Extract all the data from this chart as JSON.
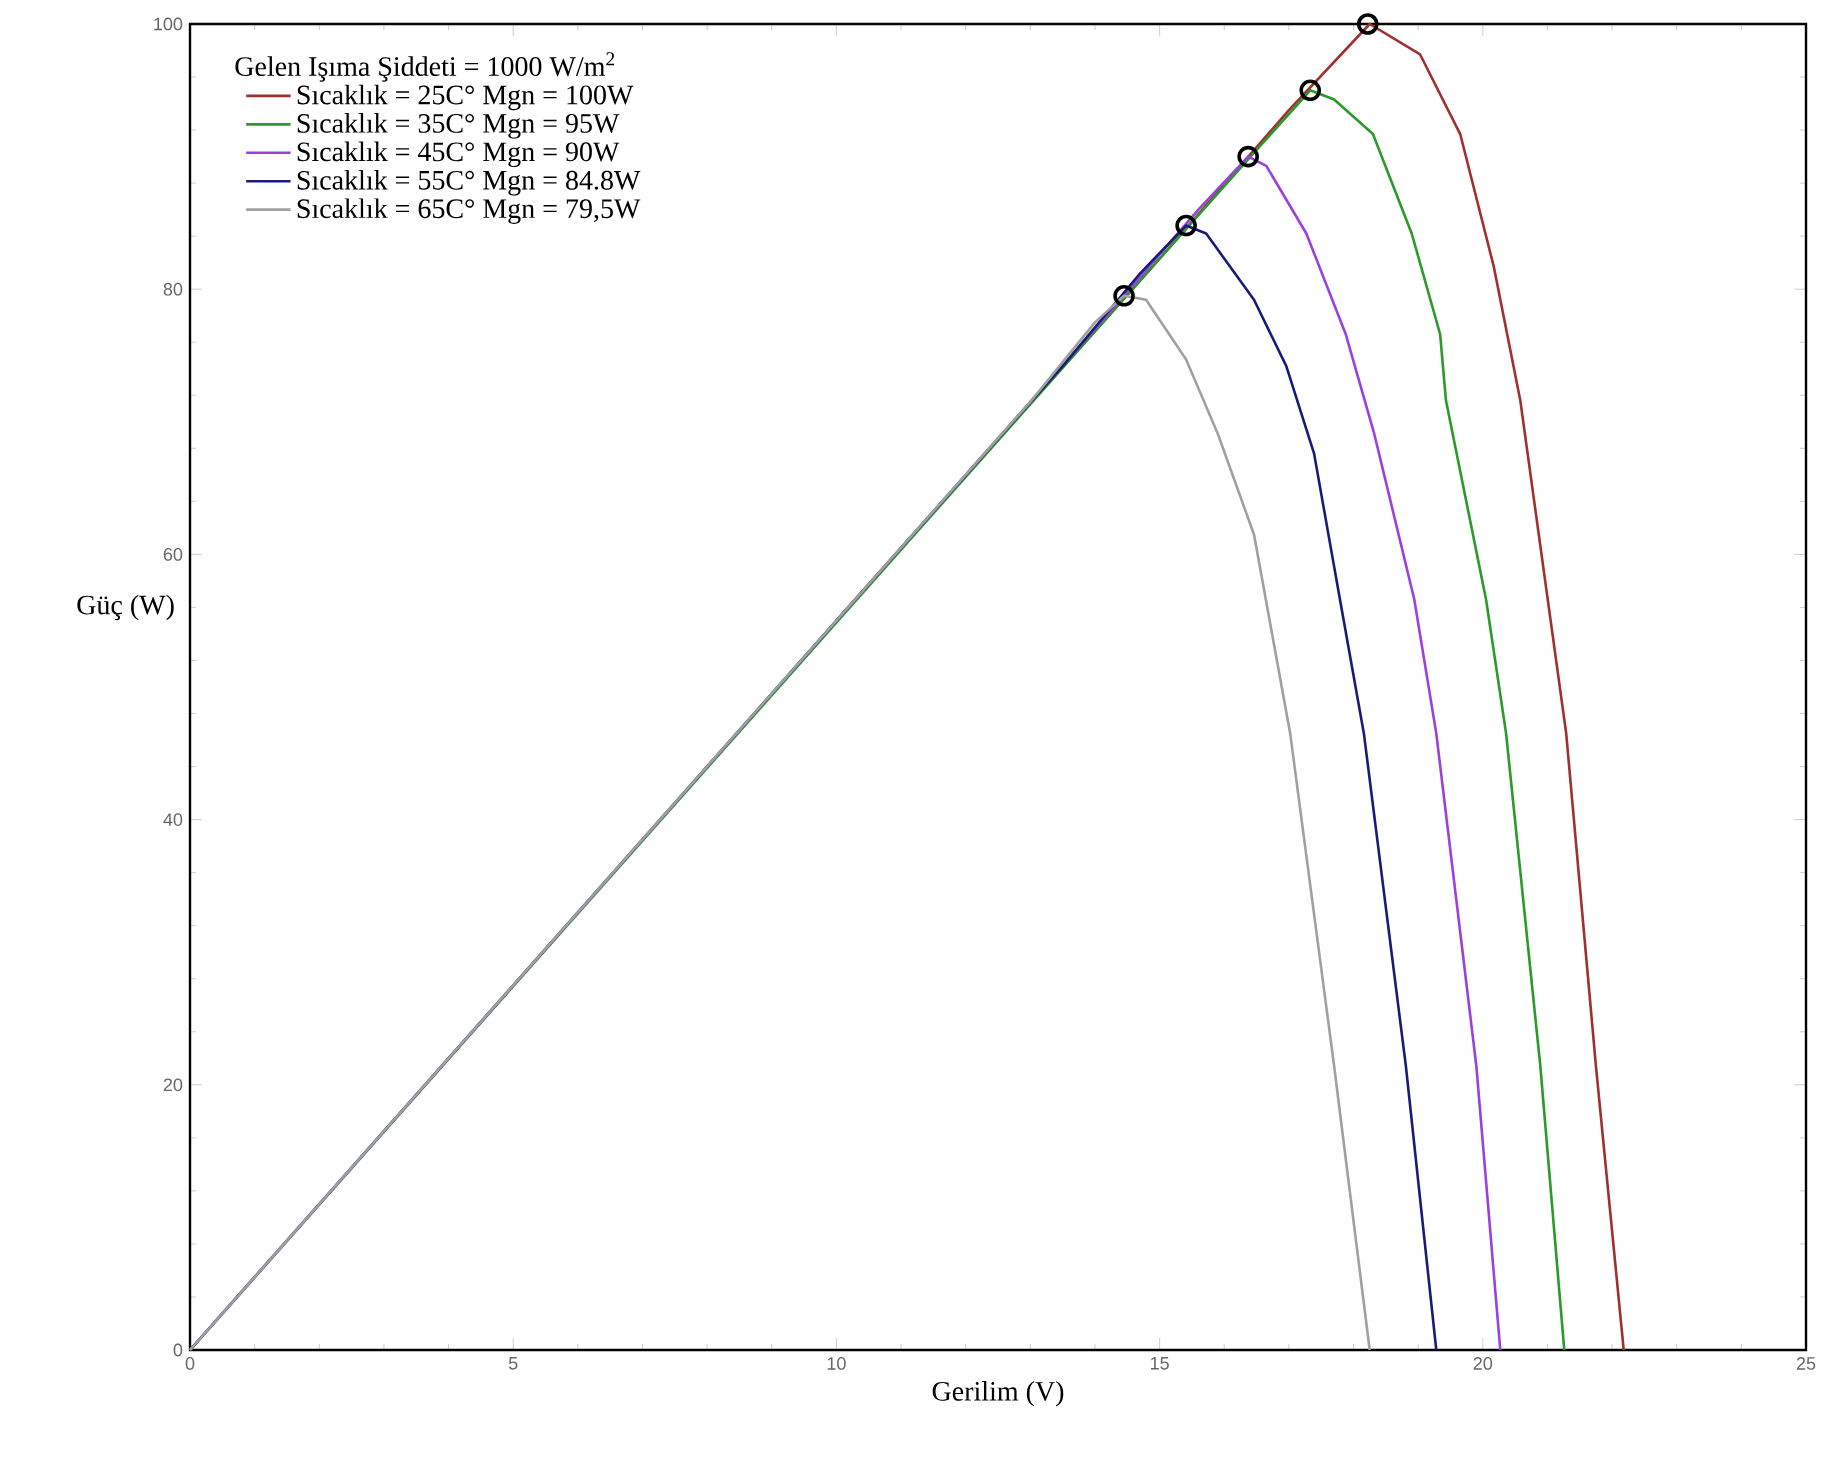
{
  "chart_data": {
    "type": "line",
    "xlabel": "Gerilim (V)",
    "ylabel": "Güç (W)",
    "legend_title": "Gelen Işıma Şiddeti = 1000 W/m$^{2}$",
    "legend": "top left",
    "xlim": [
      0,
      25
    ],
    "ylim": [
      0,
      100
    ],
    "xticks": [
      0,
      5,
      10,
      15,
      20,
      25
    ],
    "yticks": [
      0,
      20,
      40,
      60,
      80,
      100
    ],
    "line_style": "solid",
    "marker": "none",
    "series": [
      {
        "name": "Sıcaklık = 25C° Mgn = 100W",
        "color": "#a03030",
        "x": [
          10,
          15,
          17,
          18.25,
          19.03,
          19.65,
          20.17,
          20.58,
          21.29,
          21.75,
          22.18
        ],
        "values": [
          55,
          82.3,
          93.5,
          100,
          97.7,
          91.7,
          81.7,
          71.6,
          46.5,
          21.4,
          0
        ]
      },
      {
        "name": "Sıcaklık = 35C° Mgn = 95W",
        "color": "#2a9a2a",
        "x": [
          0,
          15,
          16.5,
          17.33,
          17.7,
          18.3,
          18.9,
          19.34,
          19.43,
          20.05,
          20.36,
          20.89,
          21.26
        ],
        "values": [
          0,
          82.3,
          90.5,
          95,
          94.3,
          91.7,
          84.2,
          76.6,
          71.6,
          56.6,
          46.5,
          21.4,
          0
        ]
      },
      {
        "name": "Sıcaklık = 45C° Mgn = 90W",
        "color": "#9a40e0",
        "x": [
          0,
          5,
          10,
          14,
          15.6,
          16.37,
          16.65,
          17.27,
          17.88,
          18.32,
          18.94,
          19.28,
          19.9,
          20.27
        ],
        "values": [
          0,
          27.5,
          55,
          77,
          86,
          90,
          89.3,
          84.2,
          76.6,
          69.1,
          56.6,
          46.5,
          21.4,
          0
        ]
      },
      {
        "name": "Sıcaklık = 55C° Mgn = 84.8W",
        "color": "#1a1a7a",
        "x": [
          0,
          5,
          10,
          13.5,
          14.7,
          15.41,
          15.72,
          16.46,
          16.96,
          17.39,
          17.79,
          18.16,
          18.81,
          19.28
        ],
        "values": [
          0,
          27.5,
          55,
          74.2,
          81.2,
          84.8,
          84.2,
          79.2,
          74.2,
          67.6,
          56.6,
          46.5,
          21.4,
          0
        ]
      },
      {
        "name": "Sıcaklık = 65C° Mgn = 79,5W",
        "color": "#a0a0a0",
        "x": [
          0,
          5,
          10,
          13,
          14,
          14.45,
          14.79,
          15.41,
          15.9,
          16.46,
          17.02,
          17.7,
          18.25
        ],
        "values": [
          0,
          27.5,
          55,
          71.5,
          77.5,
          79.5,
          79.2,
          74.7,
          69.1,
          61.5,
          46.5,
          21.4,
          0
        ]
      },
      {
        "type": "scatter",
        "marker": "circle",
        "color": "#000000",
        "x": [
          18.22,
          17.33,
          16.37,
          15.41,
          14.45
        ],
        "values": [
          100,
          95,
          90,
          84.8,
          79.5
        ]
      }
    ]
  }
}
